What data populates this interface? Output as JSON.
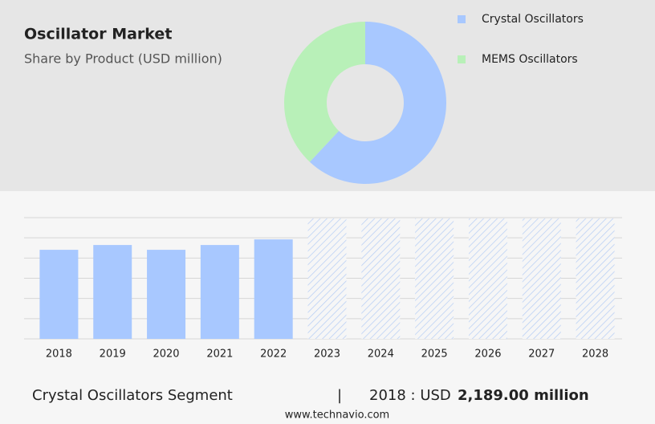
{
  "chart_data": [
    {
      "type": "donut",
      "title": "Oscillator Market",
      "subtitle": "Share by Product (USD million)",
      "categories": [
        "Crystal Oscillators",
        "MEMS Oscillators"
      ],
      "values": [
        62,
        38
      ],
      "colors": [
        "#a8c8ff",
        "#b8f0b8"
      ]
    },
    {
      "type": "bar",
      "categories": [
        "2018",
        "2019",
        "2020",
        "2021",
        "2022",
        "2023",
        "2024",
        "2025",
        "2026",
        "2027",
        "2028"
      ],
      "values": [
        2189,
        2307,
        2189,
        2307,
        2445,
        null,
        null,
        null,
        null,
        null,
        null
      ],
      "color": "#a8c8ff",
      "ylim": [
        0,
        2960
      ],
      "grid": true
    }
  ],
  "footer": {
    "segment": "Crystal Oscillators Segment",
    "separator": "|",
    "year_label": "2018 : USD",
    "value": "2,189.00 million",
    "source": "www.technavio.com"
  }
}
